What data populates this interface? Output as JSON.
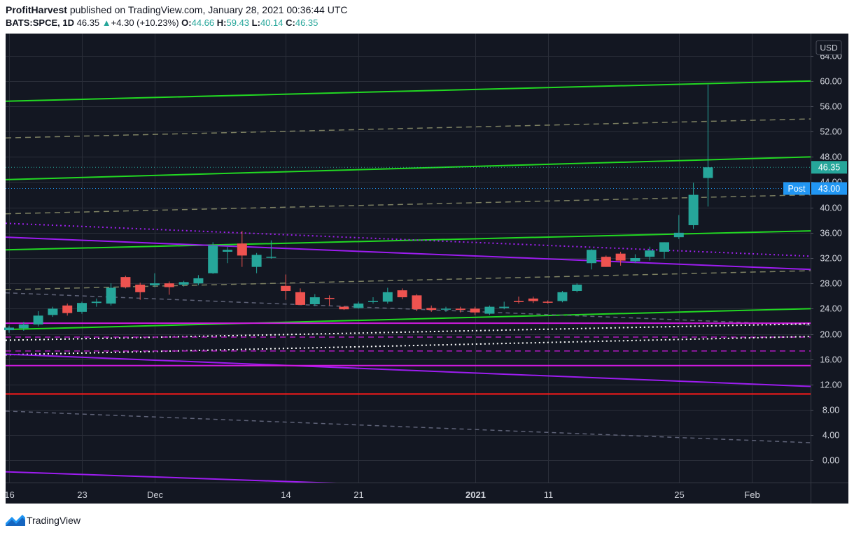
{
  "header": {
    "author": "ProfitHarvest",
    "published_text": "published on TradingView.com, January 28, 2021 00:36:44 UTC",
    "symbol": "BATS:SPCE, 1D",
    "last": "46.35",
    "change_arrow": "▲",
    "change": "+4.30 (+10.23%)",
    "o_label": "O:",
    "o_value": "44.66",
    "h_label": "H:",
    "h_value": "59.43",
    "l_label": "L:",
    "l_value": "40.14",
    "c_label": "C:",
    "c_value": "46.35"
  },
  "footer": {
    "brand": "TradingView"
  },
  "chart_data": {
    "type": "candlestick",
    "currency": "USD",
    "colors": {
      "background": "#131722",
      "grid": "#2a2e39",
      "up": "#26a69a",
      "down": "#ef5350",
      "axis_text": "#d1d4dc",
      "last_label": "#26a69a",
      "post_label": "#2196f3"
    },
    "ylim": [
      -3.5,
      67.5
    ],
    "y_ticks": [
      0,
      4,
      8,
      12,
      16,
      20,
      24,
      28,
      32,
      36,
      40,
      44,
      48,
      52,
      56,
      60,
      64
    ],
    "x_ticks": [
      {
        "label": "16",
        "i": 0,
        "bold": false
      },
      {
        "label": "23",
        "i": 5,
        "bold": false
      },
      {
        "label": "Dec",
        "i": 10,
        "bold": false
      },
      {
        "label": "14",
        "i": 19,
        "bold": false
      },
      {
        "label": "21",
        "i": 24,
        "bold": false
      },
      {
        "label": "2021",
        "i": 32,
        "bold": true
      },
      {
        "label": "11",
        "i": 37,
        "bold": false
      },
      {
        "label": "25",
        "i": 46,
        "bold": false
      },
      {
        "label": "Feb",
        "i": 51,
        "bold": false
      }
    ],
    "price_labels": [
      {
        "text": "46.35",
        "value": 46.35,
        "kind": "last"
      },
      {
        "text": "Post",
        "value": 43.0,
        "kind": "post_tag"
      },
      {
        "text": "43.00",
        "value": 43.0,
        "kind": "post"
      }
    ],
    "candles": [
      {
        "i": 0,
        "o": 20.6,
        "h": 21.3,
        "l": 20.2,
        "c": 21.0
      },
      {
        "i": 1,
        "o": 20.9,
        "h": 21.9,
        "l": 20.5,
        "c": 21.5
      },
      {
        "i": 2,
        "o": 21.5,
        "h": 23.6,
        "l": 21.2,
        "c": 22.9
      },
      {
        "i": 3,
        "o": 23.0,
        "h": 24.3,
        "l": 22.7,
        "c": 24.0
      },
      {
        "i": 4,
        "o": 24.5,
        "h": 24.8,
        "l": 22.9,
        "c": 23.3
      },
      {
        "i": 5,
        "o": 23.5,
        "h": 25.1,
        "l": 23.2,
        "c": 24.9
      },
      {
        "i": 6,
        "o": 24.9,
        "h": 25.6,
        "l": 24.3,
        "c": 25.1
      },
      {
        "i": 7,
        "o": 24.8,
        "h": 28.0,
        "l": 24.5,
        "c": 27.3
      },
      {
        "i": 8,
        "o": 29.0,
        "h": 29.2,
        "l": 27.2,
        "c": 27.4
      },
      {
        "i": 9,
        "o": 27.8,
        "h": 28.1,
        "l": 25.4,
        "c": 26.6
      },
      {
        "i": 10,
        "o": 27.7,
        "h": 29.6,
        "l": 27.4,
        "c": 28.0
      },
      {
        "i": 11,
        "o": 28.0,
        "h": 28.3,
        "l": 26.2,
        "c": 27.4
      },
      {
        "i": 12,
        "o": 27.8,
        "h": 28.4,
        "l": 27.5,
        "c": 28.2
      },
      {
        "i": 13,
        "o": 28.0,
        "h": 29.3,
        "l": 27.7,
        "c": 28.8
      },
      {
        "i": 14,
        "o": 29.6,
        "h": 34.5,
        "l": 29.5,
        "c": 34.0
      },
      {
        "i": 15,
        "o": 33.0,
        "h": 33.8,
        "l": 31.2,
        "c": 33.3
      },
      {
        "i": 16,
        "o": 34.3,
        "h": 36.3,
        "l": 30.6,
        "c": 32.4
      },
      {
        "i": 17,
        "o": 30.6,
        "h": 32.8,
        "l": 29.6,
        "c": 32.5
      },
      {
        "i": 18,
        "o": 32.2,
        "h": 34.8,
        "l": 31.9,
        "c": 32.2
      },
      {
        "i": 19,
        "o": 27.6,
        "h": 29.4,
        "l": 25.4,
        "c": 26.8
      },
      {
        "i": 20,
        "o": 26.6,
        "h": 27.2,
        "l": 24.6,
        "c": 24.6
      },
      {
        "i": 21,
        "o": 24.7,
        "h": 26.3,
        "l": 24.4,
        "c": 25.8
      },
      {
        "i": 22,
        "o": 25.7,
        "h": 26.1,
        "l": 24.5,
        "c": 25.6
      },
      {
        "i": 23,
        "o": 24.3,
        "h": 24.4,
        "l": 23.8,
        "c": 23.9
      },
      {
        "i": 24,
        "o": 24.1,
        "h": 25.1,
        "l": 24.0,
        "c": 24.8
      },
      {
        "i": 25,
        "o": 25.1,
        "h": 25.8,
        "l": 24.8,
        "c": 25.2
      },
      {
        "i": 26,
        "o": 25.1,
        "h": 27.3,
        "l": 24.8,
        "c": 26.6
      },
      {
        "i": 27,
        "o": 26.9,
        "h": 27.2,
        "l": 25.5,
        "c": 25.8
      },
      {
        "i": 28,
        "o": 26.1,
        "h": 26.3,
        "l": 23.6,
        "c": 23.9
      },
      {
        "i": 29,
        "o": 24.1,
        "h": 24.5,
        "l": 23.5,
        "c": 23.8
      },
      {
        "i": 30,
        "o": 23.9,
        "h": 24.3,
        "l": 23.5,
        "c": 24.0
      },
      {
        "i": 31,
        "o": 24.0,
        "h": 24.3,
        "l": 23.4,
        "c": 23.8
      },
      {
        "i": 32,
        "o": 24.0,
        "h": 24.3,
        "l": 23.0,
        "c": 23.4
      },
      {
        "i": 33,
        "o": 23.2,
        "h": 24.5,
        "l": 23.0,
        "c": 24.3
      },
      {
        "i": 34,
        "o": 24.1,
        "h": 25.1,
        "l": 23.9,
        "c": 24.3
      },
      {
        "i": 35,
        "o": 25.2,
        "h": 25.9,
        "l": 24.8,
        "c": 25.1
      },
      {
        "i": 36,
        "o": 25.6,
        "h": 25.9,
        "l": 24.9,
        "c": 25.2
      },
      {
        "i": 37,
        "o": 25.1,
        "h": 25.3,
        "l": 24.8,
        "c": 25.0
      },
      {
        "i": 38,
        "o": 25.2,
        "h": 26.8,
        "l": 25.0,
        "c": 26.6
      },
      {
        "i": 39,
        "o": 26.8,
        "h": 28.0,
        "l": 26.6,
        "c": 27.8
      },
      {
        "i": 40,
        "o": 31.2,
        "h": 33.4,
        "l": 30.2,
        "c": 33.3
      },
      {
        "i": 41,
        "o": 32.2,
        "h": 32.4,
        "l": 30.6,
        "c": 30.6
      },
      {
        "i": 42,
        "o": 32.7,
        "h": 33.0,
        "l": 30.8,
        "c": 31.6
      },
      {
        "i": 43,
        "o": 31.5,
        "h": 32.6,
        "l": 31.2,
        "c": 32.0
      },
      {
        "i": 44,
        "o": 32.2,
        "h": 33.8,
        "l": 31.6,
        "c": 33.2
      },
      {
        "i": 45,
        "o": 33.0,
        "h": 34.5,
        "l": 31.9,
        "c": 34.5
      },
      {
        "i": 46,
        "o": 35.3,
        "h": 38.8,
        "l": 35.0,
        "c": 36.0
      },
      {
        "i": 47,
        "o": 37.2,
        "h": 43.9,
        "l": 36.6,
        "c": 42.0
      },
      {
        "i": 48,
        "o": 44.66,
        "h": 59.43,
        "l": 40.14,
        "c": 46.35
      }
    ],
    "trend_lines": [
      {
        "name": "green-channel-top",
        "color": "#22d822",
        "width": 2,
        "dash": "",
        "v1": 56.8,
        "v2": 60.0
      },
      {
        "name": "green-channel-mid",
        "color": "#22d822",
        "width": 2,
        "dash": "",
        "v1": 44.4,
        "v2": 48.0
      },
      {
        "name": "green-channel-lower",
        "color": "#22d822",
        "width": 2,
        "dash": "",
        "v1": 33.3,
        "v2": 36.3
      },
      {
        "name": "green-channel-bottom",
        "color": "#22d822",
        "width": 2,
        "dash": "",
        "v1": 20.7,
        "v2": 24.0
      },
      {
        "name": "olive-dashed-upper",
        "color": "#7d8062",
        "width": 1.5,
        "dash": "8,6",
        "v1": 51.0,
        "v2": 54.0
      },
      {
        "name": "olive-dashed-mid",
        "color": "#7d8062",
        "width": 1.5,
        "dash": "8,6",
        "v1": 39.0,
        "v2": 42.0
      },
      {
        "name": "olive-dashed-lower",
        "color": "#7d8062",
        "width": 1.5,
        "dash": "8,6",
        "v1": 27.0,
        "v2": 30.0
      },
      {
        "name": "purple-dotted-line",
        "color": "#a020f0",
        "width": 2,
        "dash": "2,4",
        "v1": 37.5,
        "v2": 32.3
      },
      {
        "name": "purple-solid-descending",
        "color": "#9d1cf0",
        "width": 2,
        "dash": "",
        "v1": 35.3,
        "v2": 30.2
      },
      {
        "name": "gray-dashed-descending",
        "color": "#5f6378",
        "width": 1.5,
        "dash": "6,5",
        "v1": 26.5,
        "v2": 21.4
      },
      {
        "name": "magenta-horizontal-upper",
        "color": "#d01ae0",
        "width": 2,
        "dash": "",
        "v1": 21.7,
        "v2": 21.7
      },
      {
        "name": "white-dotted-upper",
        "color": "#ffffff",
        "width": 2,
        "dash": "2,4",
        "v1": 19.0,
        "v2": 21.6
      },
      {
        "name": "magenta-dashed-mid",
        "color": "#b01ac0",
        "width": 1.5,
        "dash": "8,6",
        "v1": 19.5,
        "v2": 19.5
      },
      {
        "name": "white-dotted-lower",
        "color": "#ffffff",
        "width": 2,
        "dash": "2,4",
        "v1": 16.7,
        "v2": 19.6
      },
      {
        "name": "magenta-dashed-low",
        "color": "#b01ac0",
        "width": 1.5,
        "dash": "8,6",
        "v1": 17.3,
        "v2": 17.3
      },
      {
        "name": "purple-descending-low",
        "color": "#9d1cf0",
        "width": 2,
        "dash": "",
        "v1": 16.8,
        "v2": 11.7
      },
      {
        "name": "magenta-horizontal-lower",
        "color": "#d01ae0",
        "width": 2,
        "dash": "",
        "v1": 15.0,
        "v2": 15.0
      },
      {
        "name": "red-horizontal-support",
        "color": "#ff1a1a",
        "width": 2,
        "dash": "",
        "v1": 10.5,
        "v2": 10.5
      },
      {
        "name": "gray-dashed-bottom",
        "color": "#5f6378",
        "width": 1.5,
        "dash": "6,5",
        "v1": 7.8,
        "v2": 2.8
      },
      {
        "name": "purple-steep-bottom",
        "color": "#9d1cf0",
        "width": 2,
        "dash": "",
        "v1": -1.8,
        "v2": -6.2
      },
      {
        "name": "last-price-dotted",
        "color": "#26a69a",
        "width": 1,
        "dash": "1,3",
        "v1": 46.35,
        "v2": 46.35
      },
      {
        "name": "post-price-dotted",
        "color": "#2196f3",
        "width": 1,
        "dash": "1,3",
        "v1": 43.0,
        "v2": 43.0
      }
    ]
  }
}
